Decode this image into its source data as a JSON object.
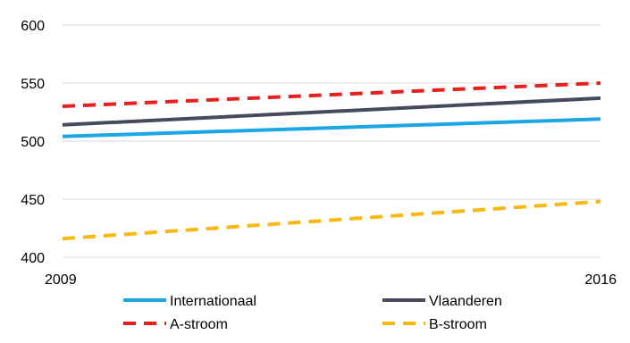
{
  "chart_data": {
    "type": "line",
    "x": [
      2009,
      2016
    ],
    "xlim": [
      2009,
      2016
    ],
    "ylim": [
      400,
      600
    ],
    "yticks": [
      400,
      450,
      500,
      550,
      600
    ],
    "xticks": [
      2009,
      2016
    ],
    "grid": true,
    "legend_position": "bottom",
    "series": [
      {
        "name": "Internationaal",
        "values": [
          504,
          519
        ],
        "color": "#1aa7e6",
        "dash": "solid"
      },
      {
        "name": "Vlaanderen",
        "values": [
          514,
          537
        ],
        "color": "#454b5d",
        "dash": "solid"
      },
      {
        "name": "A-stroom",
        "values": [
          530,
          550
        ],
        "color": "#e5201e",
        "dash": "dashed"
      },
      {
        "name": "B-stroom",
        "values": [
          416,
          448
        ],
        "color": "#f9b810",
        "dash": "dashed"
      }
    ]
  }
}
